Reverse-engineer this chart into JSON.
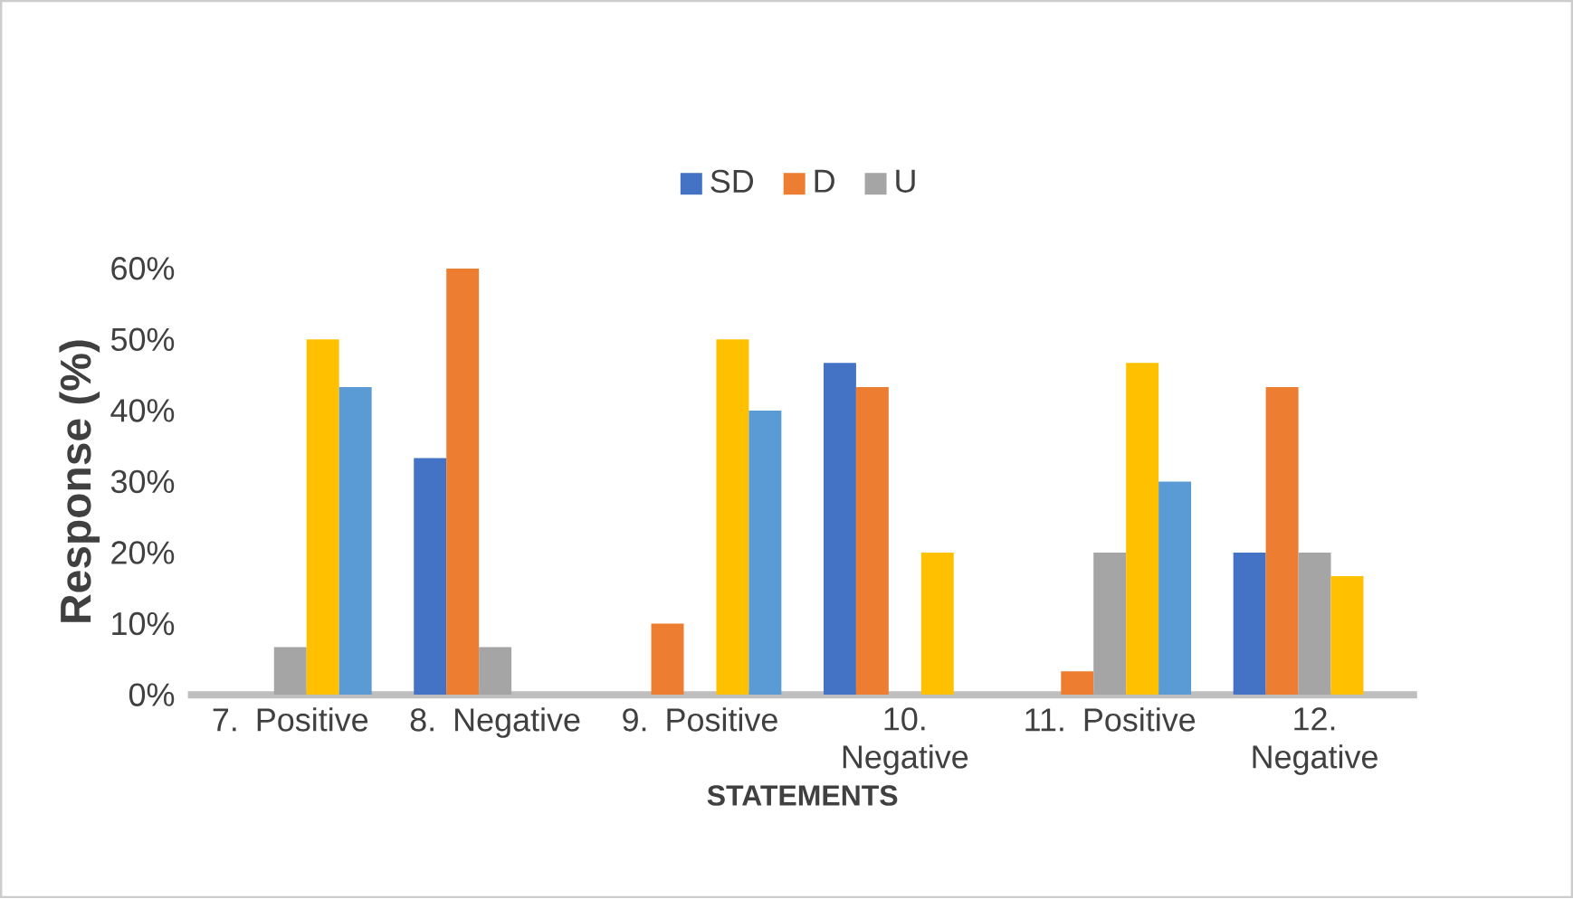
{
  "chart_data": {
    "type": "bar",
    "xlabel": "STATEMENTS",
    "ylabel": "Response (%)",
    "categories": [
      "7. Positive",
      "8. Negative",
      "9. Positive",
      "10. Negative",
      "11. Positive",
      "12. Negative"
    ],
    "series": [
      {
        "name": "SD",
        "color": "#4472c4",
        "values": [
          0,
          33.3,
          0,
          46.7,
          0,
          20
        ]
      },
      {
        "name": "D",
        "color": "#ed7d31",
        "values": [
          0,
          60,
          10,
          43.3,
          3.3,
          43.3
        ]
      },
      {
        "name": "U",
        "color": "#a5a5a5",
        "values": [
          6.7,
          6.7,
          0,
          0,
          20,
          20
        ]
      },
      {
        "color": "#ffc000",
        "values": [
          50,
          0,
          50,
          20,
          46.7,
          16.7
        ]
      },
      {
        "color": "#5b9bd5",
        "values": [
          43.3,
          0,
          40,
          0,
          30,
          0
        ]
      }
    ],
    "ylim": [
      0,
      60
    ],
    "yticks": [
      {
        "value": 0,
        "label": "0%"
      },
      {
        "value": 10,
        "label": "10%"
      },
      {
        "value": 20,
        "label": "20%"
      },
      {
        "value": 30,
        "label": "30%"
      },
      {
        "value": 40,
        "label": "40%"
      },
      {
        "value": 50,
        "label": "50%"
      },
      {
        "value": 60,
        "label": "60%"
      }
    ],
    "legend": "top",
    "grid": false
  }
}
